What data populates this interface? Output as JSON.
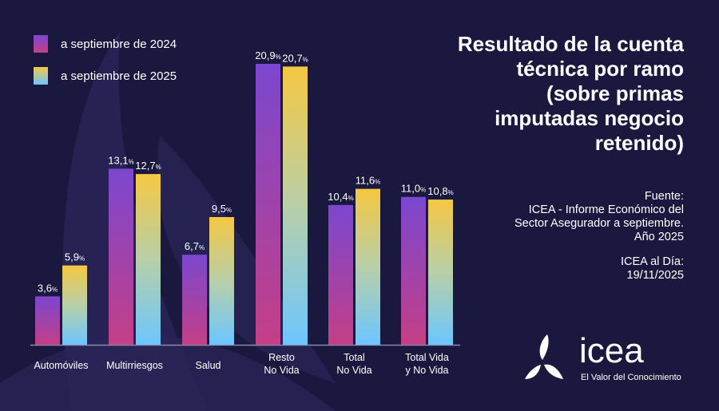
{
  "title": "Resultado de la cuenta técnica por ramo (sobre primas imputadas negocio retenido)",
  "source": {
    "label": "Fuente:",
    "lines": [
      "ICEA - Informe Económico del",
      "Sector Asegurador a septiembre.",
      "Año 2025"
    ],
    "date_label": "ICEA al Día:",
    "date": "19/11/2025"
  },
  "logo": {
    "brand": "icea",
    "tagline": "El Valor del Conocimiento"
  },
  "colors": {
    "background": "#1b1840",
    "s2024_top": "#7b47d0",
    "s2024_bottom": "#c43f86",
    "s2025_top": "#f5c842",
    "s2025_bottom": "#6cc6ff"
  },
  "chart_data": {
    "type": "bar",
    "title": "Resultado de la cuenta técnica por ramo (sobre primas imputadas negocio retenido)",
    "categories": [
      "Automóviles",
      "Multirriesgos",
      "Salud",
      "Resto\nNo Vida",
      "Total\nNo Vida",
      "Total Vida\ny No Vida"
    ],
    "series": [
      {
        "name": "a septiembre de 2024",
        "values": [
          3.6,
          13.1,
          6.7,
          20.9,
          10.4,
          11.0
        ],
        "labels": [
          "3,6",
          "13,1",
          "6,7",
          "20,9",
          "10,4",
          "11,0"
        ]
      },
      {
        "name": "a septiembre de 2025",
        "values": [
          5.9,
          12.7,
          9.5,
          20.7,
          11.6,
          10.8
        ],
        "labels": [
          "5,9",
          "12,7",
          "9,5",
          "20,7",
          "11,6",
          "10,8"
        ]
      }
    ],
    "unit": "%",
    "ylim": [
      0,
      21
    ],
    "grid": false,
    "legend": "top-left"
  }
}
